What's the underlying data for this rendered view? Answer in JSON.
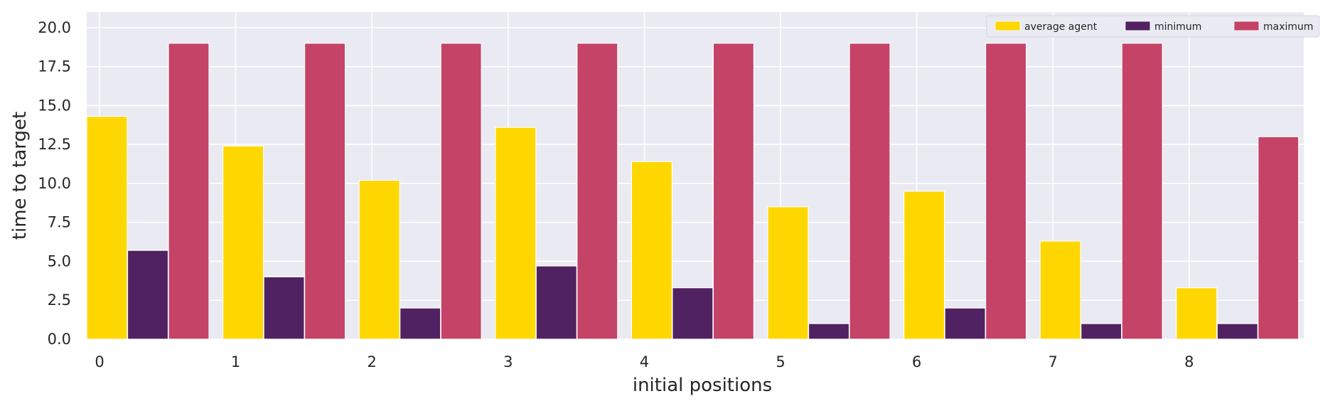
{
  "chart_data": {
    "type": "bar",
    "title": "",
    "xlabel": "initial positions",
    "ylabel": "time to target",
    "categories": [
      "0",
      "1",
      "2",
      "3",
      "4",
      "5",
      "6",
      "7",
      "8"
    ],
    "ylim": [
      0,
      21
    ],
    "yticks": [
      "0.0",
      "2.5",
      "5.0",
      "7.5",
      "10.0",
      "12.5",
      "15.0",
      "17.5",
      "20.0"
    ],
    "grid": true,
    "legend_position": "top-right",
    "series": [
      {
        "name": "average agent",
        "color": "#FFD700",
        "values": [
          14.3,
          12.4,
          10.2,
          13.6,
          11.4,
          8.5,
          9.5,
          6.3,
          3.3
        ]
      },
      {
        "name": "minimum",
        "color": "#512262",
        "values": [
          5.7,
          4.0,
          2.0,
          4.7,
          3.3,
          1.0,
          2.0,
          1.0,
          1.0
        ]
      },
      {
        "name": "maximum",
        "color": "#C44366",
        "values": [
          19.0,
          19.0,
          19.0,
          19.0,
          19.0,
          19.0,
          19.0,
          19.0,
          13.0
        ]
      }
    ]
  }
}
